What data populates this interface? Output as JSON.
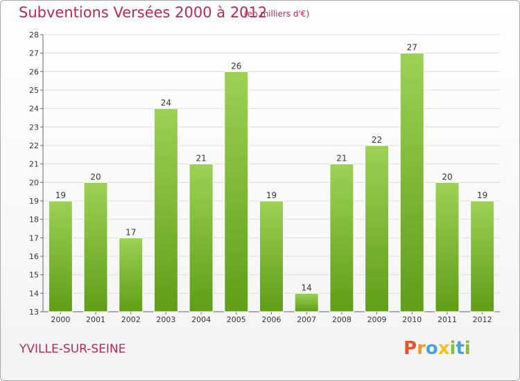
{
  "header": {
    "title": "Subventions Versées 2000 à 2012",
    "subtitle": "(en milliers d'€)"
  },
  "footer": {
    "place": "YVILLE-SUR-SEINE",
    "logo_text": "Proxiti",
    "logo_colors": [
      "#e8522b",
      "#f29a1f",
      "#4aa1d8",
      "#f2c21f",
      "#86bd3c",
      "#4aa1d8",
      "#86bd3c"
    ]
  },
  "colors": {
    "bar_top": "#9dd154",
    "bar_bottom": "#5f9e17",
    "text": "#b12a5a",
    "grid": "#dddddd"
  },
  "chart_data": {
    "type": "bar",
    "categories": [
      "2000",
      "2001",
      "2002",
      "2003",
      "2004",
      "2005",
      "2006",
      "2007",
      "2008",
      "2009",
      "2010",
      "2011",
      "2012"
    ],
    "values": [
      19,
      20,
      17,
      24,
      21,
      26,
      19,
      14,
      21,
      22,
      27,
      20,
      19
    ],
    "title": "Subventions Versées 2000 à 2012",
    "subtitle": "(en milliers d'€)",
    "xlabel": "",
    "ylabel": "",
    "ylim": [
      13,
      28
    ],
    "yticks": [
      13,
      14,
      15,
      16,
      17,
      18,
      19,
      20,
      21,
      22,
      23,
      24,
      25,
      26,
      27,
      28
    ],
    "grid": true,
    "data_labels": true
  }
}
